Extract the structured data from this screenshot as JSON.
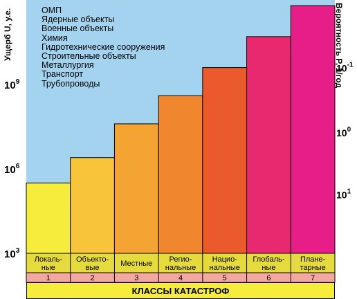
{
  "chart_data": {
    "type": "bar",
    "categories": [
      {
        "label": [
          "Локаль-",
          "ные"
        ],
        "number": "1",
        "color": "#f5ec3c"
      },
      {
        "label": [
          "Объекто-",
          "вые"
        ],
        "number": "2",
        "color": "#f8c53a"
      },
      {
        "label": [
          "Местные"
        ],
        "number": "3",
        "color": "#f4a432"
      },
      {
        "label": [
          "Регио-",
          "нальные"
        ],
        "number": "4",
        "color": "#f0872f"
      },
      {
        "label": [
          "Нацио-",
          "нальные"
        ],
        "number": "5",
        "color": "#ea5a2c"
      },
      {
        "label": [
          "Глобаль-",
          "ные"
        ],
        "number": "6",
        "color": "#e8296f"
      },
      {
        "label": [
          "Плане-",
          "тарные"
        ],
        "number": "7",
        "color": "#e71e87"
      }
    ],
    "values_log10_U": [
      5.5,
      6.4,
      7.6,
      8.6,
      9.6,
      10.7,
      11.8
    ],
    "xlabel": "КЛАССЫ КАТАСТРОФ",
    "ylabel_left": "Ущерб U, у.е.",
    "ylabel_right": "Вероятность P, 1/год",
    "left_ticks": [
      {
        "exp": 3,
        "label": "10",
        "sup": "3"
      },
      {
        "exp": 6,
        "label": "10",
        "sup": "6"
      },
      {
        "exp": 9,
        "label": "10",
        "sup": "9"
      }
    ],
    "right_ticks": [
      {
        "exp": 5.1,
        "label": "10",
        "sup": "1"
      },
      {
        "exp": 7.3,
        "label": "10",
        "sup": "0"
      },
      {
        "exp": 9.6,
        "label": "10",
        "sup": "-1"
      }
    ],
    "ylim_log10": [
      3,
      12
    ],
    "legend_title": "ОМП",
    "legend_items": [
      "Ядерные объекты",
      "Военные объекты",
      "Химия",
      "Гидротехнические сооружения",
      "Строительные объекты",
      "Металлургия",
      "Транспорт",
      "Трубопроводы"
    ],
    "colors": {
      "sky": "#a3d3ee",
      "label_band": "#e5db3c",
      "number_band": "#f2a7a0",
      "title_band": "#f5ec3c"
    }
  }
}
